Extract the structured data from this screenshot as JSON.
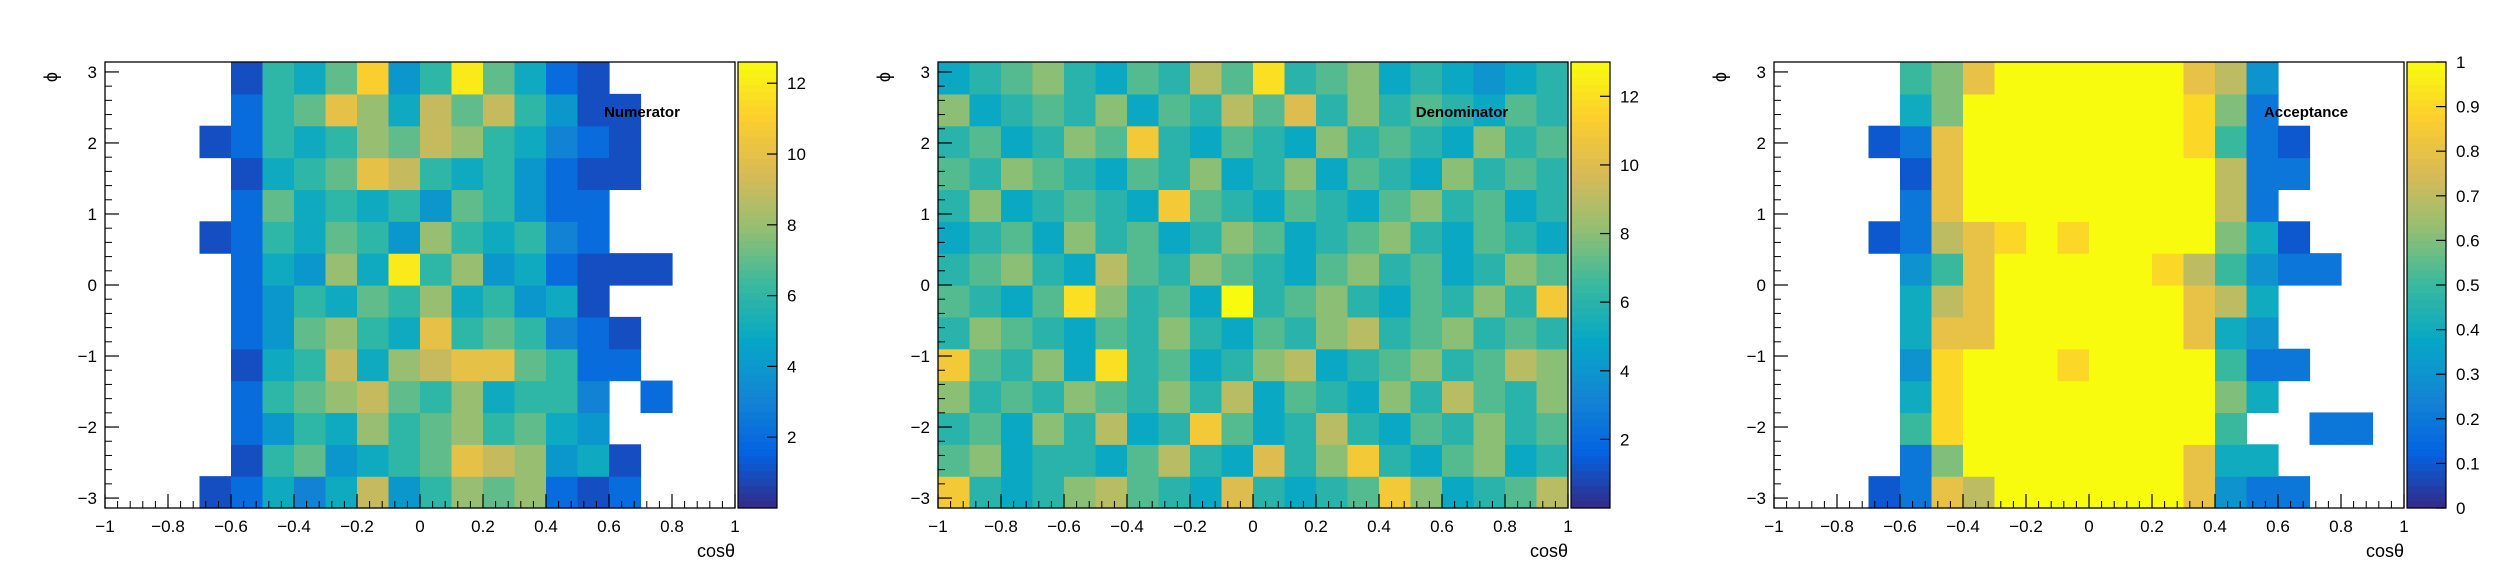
{
  "chart_data": [
    {
      "type": "heatmap",
      "label": "Numerator",
      "xlabel": "cosθ",
      "ylabel": "ϕ",
      "xlim": [
        -1,
        1
      ],
      "ylim": [
        -3.14,
        3.14
      ],
      "zlim": [
        0,
        12.6
      ],
      "nx": 20,
      "ny": 14,
      "x_ticks": [
        "−1",
        "−0.8",
        "−0.6",
        "−0.4",
        "−0.2",
        "0",
        "0.2",
        "0.4",
        "0.6",
        "0.8",
        "1"
      ],
      "y_ticks": [
        "−3",
        "−2",
        "−1",
        "0",
        "1",
        "2",
        "3"
      ],
      "z_ticks": [
        "2",
        "4",
        "6",
        "8",
        "10",
        "12"
      ],
      "z_tick_values": [
        2,
        4,
        6,
        8,
        10,
        12
      ],
      "colormap": [
        "#352a87",
        "#0363e1",
        "#1485d4",
        "#06a7c6",
        "#38b99e",
        "#92bf73",
        "#d9ba56",
        "#fcce2e",
        "#f9fb0e"
      ],
      "grid": {
        "x_start": -1,
        "y_start": -3.14,
        "z_rows_bottom_to_top": [
          [
            0,
            0,
            0,
            1,
            2,
            5,
            3,
            5,
            9,
            4,
            6,
            8,
            7,
            8,
            2,
            1,
            2,
            0,
            0,
            0
          ],
          [
            0,
            0,
            0,
            0,
            1,
            6,
            7,
            4,
            5,
            6,
            7,
            10,
            9,
            8,
            4,
            5,
            1,
            0,
            0,
            0
          ],
          [
            0,
            0,
            0,
            0,
            2,
            4,
            6,
            5,
            8,
            6,
            7,
            8,
            6,
            7,
            5,
            4,
            0,
            0,
            0,
            0
          ],
          [
            0,
            0,
            0,
            0,
            2,
            6,
            7,
            8,
            9,
            7,
            6,
            8,
            5,
            6,
            6,
            3,
            0,
            2,
            0,
            0
          ],
          [
            0,
            0,
            0,
            0,
            1,
            5,
            6,
            9,
            5,
            8,
            9,
            10,
            10,
            7,
            6,
            2,
            2,
            0,
            0,
            0
          ],
          [
            0,
            0,
            0,
            0,
            2,
            4,
            7,
            8,
            6,
            5,
            10,
            6,
            7,
            6,
            3,
            2,
            1,
            0,
            0,
            0
          ],
          [
            0,
            0,
            0,
            0,
            2,
            4,
            6,
            5,
            7,
            6,
            8,
            5,
            6,
            4,
            5,
            1,
            0,
            0,
            0,
            0
          ],
          [
            0,
            0,
            0,
            0,
            2,
            5,
            4,
            8,
            5,
            12,
            6,
            8,
            4,
            5,
            2,
            1,
            1,
            1,
            0,
            0
          ],
          [
            0,
            0,
            0,
            1,
            2,
            6,
            5,
            7,
            6,
            4,
            8,
            6,
            5,
            6,
            3,
            2,
            0,
            0,
            0,
            0
          ],
          [
            0,
            0,
            0,
            0,
            2,
            7,
            5,
            6,
            5,
            6,
            4,
            7,
            6,
            4,
            2,
            2,
            0,
            0,
            0,
            0
          ],
          [
            0,
            0,
            0,
            0,
            1,
            5,
            6,
            7,
            10,
            9,
            6,
            5,
            6,
            4,
            2,
            1,
            1,
            0,
            0,
            0
          ],
          [
            0,
            0,
            0,
            1,
            2,
            6,
            5,
            6,
            8,
            7,
            9,
            8,
            6,
            5,
            3,
            2,
            1,
            0,
            0,
            0
          ],
          [
            0,
            0,
            0,
            0,
            2,
            6,
            7,
            10,
            8,
            5,
            9,
            7,
            9,
            6,
            4,
            1,
            1,
            0,
            0,
            0
          ],
          [
            0,
            0,
            0,
            0,
            1,
            6,
            5,
            7,
            11,
            4,
            6,
            12,
            7,
            5,
            2,
            1,
            0,
            0,
            0,
            0
          ]
        ]
      }
    },
    {
      "type": "heatmap",
      "label": "Denominator",
      "xlabel": "cosθ",
      "ylabel": "ϕ",
      "xlim": [
        -1,
        1
      ],
      "ylim": [
        -3.14,
        3.14
      ],
      "zlim": [
        0,
        13
      ],
      "nx": 20,
      "ny": 14,
      "x_ticks": [
        "−1",
        "−0.8",
        "−0.6",
        "−0.4",
        "−0.2",
        "0",
        "0.2",
        "0.4",
        "0.6",
        "0.8",
        "1"
      ],
      "y_ticks": [
        "−3",
        "−2",
        "−1",
        "0",
        "1",
        "2",
        "3"
      ],
      "z_ticks": [
        "2",
        "4",
        "6",
        "8",
        "10",
        "12"
      ],
      "z_tick_values": [
        2,
        4,
        6,
        8,
        10,
        12
      ],
      "colormap": [
        "#352a87",
        "#0363e1",
        "#1485d4",
        "#06a7c6",
        "#38b99e",
        "#92bf73",
        "#d9ba56",
        "#fcce2e",
        "#f9fb0e"
      ],
      "grid": {
        "x_start": -1,
        "y_start": -3.14,
        "z_rows_bottom_to_top": [
          [
            11,
            6,
            5,
            6,
            8,
            9,
            7,
            6,
            5,
            10,
            6,
            5,
            6,
            7,
            11,
            8,
            5,
            6,
            7,
            9
          ],
          [
            7,
            8,
            5,
            6,
            6,
            5,
            7,
            9,
            6,
            5,
            10,
            6,
            8,
            11,
            6,
            5,
            7,
            8,
            5,
            6
          ],
          [
            6,
            7,
            5,
            8,
            6,
            9,
            5,
            6,
            11,
            7,
            5,
            6,
            9,
            6,
            5,
            7,
            6,
            8,
            6,
            7
          ],
          [
            8,
            6,
            7,
            6,
            8,
            7,
            6,
            8,
            6,
            9,
            5,
            7,
            6,
            5,
            8,
            6,
            9,
            7,
            6,
            8
          ],
          [
            11,
            7,
            6,
            8,
            5,
            12,
            6,
            7,
            5,
            6,
            8,
            9,
            5,
            6,
            7,
            8,
            6,
            7,
            9,
            8
          ],
          [
            6,
            8,
            7,
            6,
            5,
            7,
            6,
            8,
            6,
            5,
            7,
            6,
            8,
            9,
            6,
            7,
            8,
            6,
            7,
            6
          ],
          [
            7,
            6,
            5,
            7,
            12,
            8,
            6,
            7,
            5,
            13,
            6,
            7,
            8,
            6,
            5,
            7,
            6,
            8,
            6,
            11
          ],
          [
            6,
            7,
            8,
            6,
            5,
            9,
            7,
            6,
            8,
            7,
            6,
            5,
            7,
            8,
            6,
            7,
            5,
            6,
            8,
            7
          ],
          [
            5,
            6,
            7,
            5,
            8,
            6,
            7,
            5,
            6,
            8,
            7,
            5,
            6,
            7,
            8,
            6,
            5,
            7,
            6,
            5
          ],
          [
            6,
            8,
            5,
            6,
            7,
            6,
            5,
            11,
            7,
            6,
            5,
            7,
            6,
            5,
            7,
            8,
            6,
            7,
            5,
            6
          ],
          [
            7,
            6,
            8,
            7,
            6,
            5,
            7,
            6,
            8,
            5,
            6,
            8,
            5,
            7,
            6,
            5,
            8,
            6,
            7,
            6
          ],
          [
            6,
            7,
            5,
            6,
            8,
            7,
            11,
            6,
            5,
            7,
            6,
            5,
            8,
            6,
            7,
            6,
            5,
            8,
            6,
            7
          ],
          [
            8,
            5,
            6,
            7,
            6,
            8,
            5,
            7,
            6,
            9,
            7,
            10,
            6,
            8,
            6,
            7,
            6,
            5,
            7,
            6
          ],
          [
            5,
            6,
            7,
            8,
            6,
            5,
            7,
            6,
            9,
            7,
            12,
            6,
            7,
            8,
            5,
            6,
            5,
            4,
            5,
            6
          ]
        ]
      }
    },
    {
      "type": "heatmap",
      "label": "Acceptance",
      "xlabel": "cosθ",
      "ylabel": "ϕ",
      "xlim": [
        -1,
        1
      ],
      "ylim": [
        -3.14,
        3.14
      ],
      "zlim": [
        0,
        1
      ],
      "nx": 20,
      "ny": 14,
      "x_ticks": [
        "−1",
        "−0.8",
        "−0.6",
        "−0.4",
        "−0.2",
        "0",
        "0.2",
        "0.4",
        "0.6",
        "0.8",
        "1"
      ],
      "y_ticks": [
        "−3",
        "−2",
        "−1",
        "0",
        "1",
        "2",
        "3"
      ],
      "z_ticks": [
        "0",
        "0.1",
        "0.2",
        "0.3",
        "0.4",
        "0.5",
        "0.6",
        "0.7",
        "0.8",
        "0.9",
        "1"
      ],
      "z_tick_values": [
        0,
        0.1,
        0.2,
        0.3,
        0.4,
        0.5,
        0.6,
        0.7,
        0.8,
        0.9,
        1
      ],
      "colormap": [
        "#352a87",
        "#0363e1",
        "#1485d4",
        "#06a7c6",
        "#38b99e",
        "#92bf73",
        "#d9ba56",
        "#fcce2e",
        "#f9fb0e"
      ],
      "grid": {
        "x_start": -1,
        "y_start": -3.14,
        "z_rows_bottom_to_top": [
          [
            0,
            0,
            0,
            0.1,
            0.2,
            0.8,
            0.7,
            1,
            1,
            1,
            1,
            1,
            1,
            0.8,
            0.3,
            0.2,
            0.2,
            0,
            0,
            0
          ],
          [
            0,
            0,
            0,
            0,
            0.2,
            0.6,
            1,
            1,
            1,
            1,
            1,
            1,
            1,
            0.8,
            0.4,
            0.4,
            0,
            0,
            0,
            0
          ],
          [
            0,
            0,
            0,
            0,
            0.5,
            0.9,
            1,
            1,
            1,
            1,
            1,
            1,
            1,
            1,
            0.5,
            0,
            0,
            0.2,
            0.2,
            0
          ],
          [
            0,
            0,
            0,
            0,
            0.4,
            0.9,
            1,
            1,
            1,
            1,
            1,
            1,
            1,
            1,
            0.6,
            0.4,
            0,
            0,
            0,
            0
          ],
          [
            0,
            0,
            0,
            0,
            0.3,
            0.9,
            1,
            1,
            1,
            0.9,
            1,
            1,
            1,
            1,
            0.5,
            0.2,
            0.2,
            0,
            0,
            0
          ],
          [
            0,
            0,
            0,
            0,
            0.4,
            0.8,
            0.8,
            1,
            1,
            1,
            1,
            1,
            1,
            0.8,
            0.4,
            0.3,
            0,
            0,
            0,
            0
          ],
          [
            0,
            0,
            0,
            0,
            0.4,
            0.7,
            0.8,
            1,
            1,
            1,
            1,
            1,
            1,
            0.8,
            0.7,
            0.4,
            0,
            0,
            0,
            0
          ],
          [
            0,
            0,
            0,
            0,
            0.3,
            0.5,
            0.8,
            1,
            1,
            1,
            1,
            1,
            0.9,
            0.7,
            0.5,
            0.3,
            0.2,
            0.2,
            0,
            0
          ],
          [
            0,
            0,
            0,
            0.1,
            0.2,
            0.7,
            0.8,
            0.9,
            1,
            0.9,
            1,
            1,
            1,
            1,
            0.6,
            0.4,
            0.1,
            0,
            0,
            0
          ],
          [
            0,
            0,
            0,
            0,
            0.2,
            0.8,
            1,
            1,
            1,
            1,
            1,
            1,
            1,
            1,
            0.7,
            0.2,
            0,
            0,
            0,
            0
          ],
          [
            0,
            0,
            0,
            0,
            0.1,
            0.8,
            1,
            1,
            1,
            1,
            1,
            1,
            1,
            1,
            0.7,
            0.2,
            0.2,
            0,
            0,
            0
          ],
          [
            0,
            0,
            0,
            0.1,
            0.2,
            0.8,
            1,
            1,
            1,
            1,
            1,
            1,
            1,
            0.9,
            0.5,
            0.2,
            0.1,
            0,
            0,
            0
          ],
          [
            0,
            0,
            0,
            0,
            0.4,
            0.6,
            1,
            1,
            1,
            1,
            1,
            1,
            1,
            0.9,
            0.6,
            0.2,
            0,
            0,
            0,
            0
          ],
          [
            0,
            0,
            0,
            0,
            0.5,
            0.6,
            0.8,
            1,
            1,
            1,
            1,
            1,
            1,
            0.8,
            0.7,
            0.3,
            0,
            0,
            0,
            0
          ]
        ]
      }
    }
  ]
}
